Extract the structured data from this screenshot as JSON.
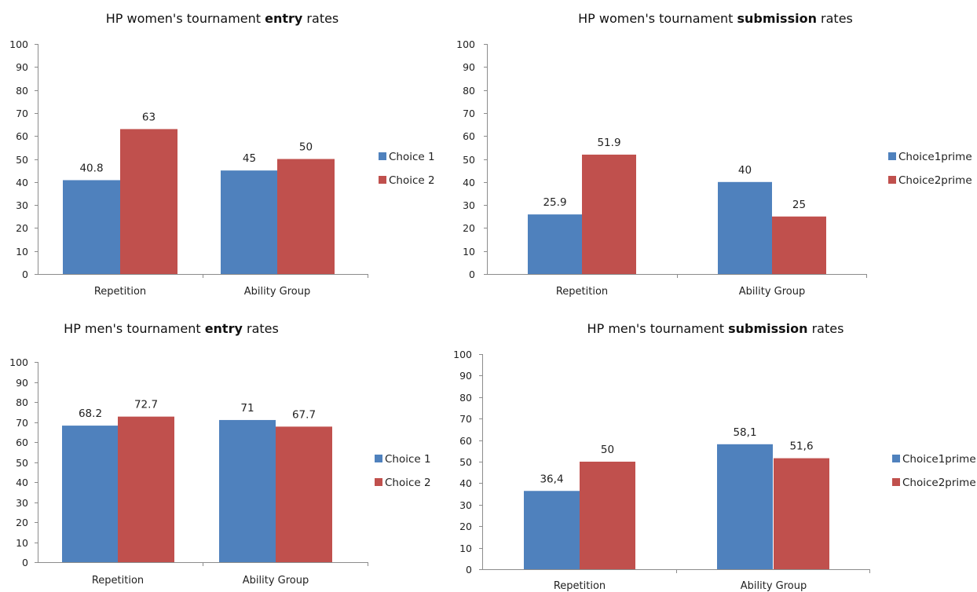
{
  "colors": {
    "series1": "#4f81bd",
    "series2": "#c0504d"
  },
  "chart_data": [
    {
      "type": "bar",
      "title_parts": [
        "HP women's tournament ",
        "entry",
        " rates"
      ],
      "categories": [
        "Repetition",
        "Ability Group"
      ],
      "series": [
        {
          "name": "Choice 1",
          "values": [
            40.8,
            45
          ],
          "labels": [
            "40.8",
            "45"
          ]
        },
        {
          "name": "Choice 2",
          "values": [
            63,
            50
          ],
          "labels": [
            "63",
            "50"
          ]
        }
      ],
      "ylim": [
        0,
        100
      ],
      "yticks": [
        0,
        10,
        20,
        30,
        40,
        50,
        60,
        70,
        80,
        90,
        100
      ],
      "grid": false,
      "legend": "right"
    },
    {
      "type": "bar",
      "title_parts": [
        "HP women's tournament ",
        "submission",
        " rates"
      ],
      "categories": [
        "Repetition",
        "Ability Group"
      ],
      "series": [
        {
          "name": "Choice1prime",
          "values": [
            25.9,
            40
          ],
          "labels": [
            "25.9",
            "40"
          ]
        },
        {
          "name": "Choice2prime",
          "values": [
            51.9,
            25
          ],
          "labels": [
            "51.9",
            "25"
          ]
        }
      ],
      "ylim": [
        0,
        100
      ],
      "yticks": [
        0,
        10,
        20,
        30,
        40,
        50,
        60,
        70,
        80,
        90,
        100
      ],
      "grid": false,
      "legend": "right"
    },
    {
      "type": "bar",
      "title_parts": [
        "HP men's tournament ",
        "entry",
        " rates"
      ],
      "categories": [
        "Repetition",
        "Ability Group"
      ],
      "series": [
        {
          "name": "Choice 1",
          "values": [
            68.2,
            71
          ],
          "labels": [
            "68.2",
            "71"
          ]
        },
        {
          "name": "Choice 2",
          "values": [
            72.7,
            67.7
          ],
          "labels": [
            "72.7",
            "67.7"
          ]
        }
      ],
      "ylim": [
        0,
        100
      ],
      "yticks": [
        0,
        10,
        20,
        30,
        40,
        50,
        60,
        70,
        80,
        90,
        100
      ],
      "grid": false,
      "legend": "right"
    },
    {
      "type": "bar",
      "title_parts": [
        "HP men's tournament ",
        "submission",
        " rates"
      ],
      "categories": [
        "Repetition",
        "Ability Group"
      ],
      "series": [
        {
          "name": "Choice1prime",
          "values": [
            36.4,
            58.1
          ],
          "labels": [
            "36,4",
            "58,1"
          ]
        },
        {
          "name": "Choice2prime",
          "values": [
            50,
            51.6
          ],
          "labels": [
            "50",
            "51,6"
          ]
        }
      ],
      "ylim": [
        0,
        100
      ],
      "yticks": [
        0,
        10,
        20,
        30,
        40,
        50,
        60,
        70,
        80,
        90,
        100
      ],
      "grid": false,
      "legend": "right"
    }
  ]
}
